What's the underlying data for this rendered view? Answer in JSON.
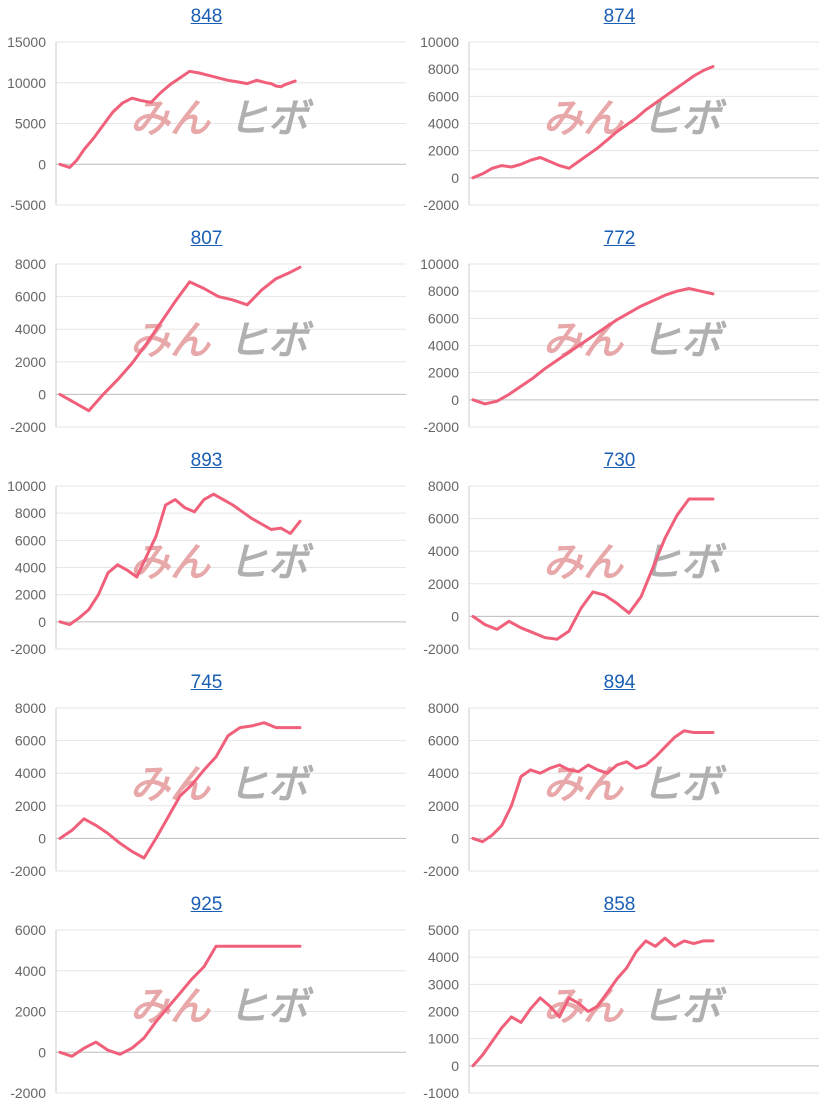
{
  "watermark": {
    "left_text": "みん",
    "right_text": "ヒボ",
    "left_color": "#e8a8aa",
    "right_color": "#b0b0b0"
  },
  "line_color": "#f0607a",
  "chart_data": [
    {
      "type": "line",
      "title": "848",
      "yticks": [
        15000,
        10000,
        5000,
        0,
        -5000
      ],
      "ylim": [
        -5000,
        15000
      ],
      "x": [
        0,
        4,
        7,
        10,
        14,
        18,
        22,
        26,
        30,
        34,
        38,
        42,
        46,
        50,
        54,
        58,
        62,
        66,
        70,
        74,
        78,
        82,
        86,
        88,
        90,
        92,
        94,
        98
      ],
      "y": [
        0,
        -400,
        500,
        1800,
        3200,
        4800,
        6400,
        7500,
        8100,
        7800,
        7600,
        8800,
        9800,
        10600,
        11400,
        11200,
        10900,
        10600,
        10300,
        10100,
        9900,
        10300,
        10000,
        9900,
        9600,
        9500,
        9800,
        10200
      ]
    },
    {
      "type": "line",
      "title": "874",
      "yticks": [
        10000,
        8000,
        6000,
        4000,
        2000,
        0,
        -2000
      ],
      "ylim": [
        -2000,
        10000
      ],
      "x": [
        0,
        4,
        8,
        12,
        16,
        20,
        24,
        28,
        32,
        36,
        40,
        44,
        48,
        52,
        56,
        60,
        64,
        68,
        72,
        76,
        80,
        84,
        88,
        92,
        96,
        100
      ],
      "y": [
        0,
        300,
        700,
        900,
        800,
        1000,
        1300,
        1500,
        1200,
        900,
        700,
        1200,
        1700,
        2200,
        2800,
        3400,
        3900,
        4400,
        5000,
        5500,
        6000,
        6500,
        7000,
        7500,
        7900,
        8200
      ]
    },
    {
      "type": "line",
      "title": "807",
      "yticks": [
        8000,
        6000,
        4000,
        2000,
        0,
        -2000
      ],
      "ylim": [
        -2000,
        8000
      ],
      "x": [
        0,
        6,
        12,
        18,
        24,
        30,
        36,
        42,
        48,
        54,
        60,
        66,
        72,
        78,
        84,
        90,
        96,
        100
      ],
      "y": [
        0,
        -500,
        -1000,
        0,
        900,
        1900,
        3100,
        4400,
        5700,
        6900,
        6500,
        6000,
        5800,
        5500,
        6400,
        7100,
        7500,
        7800
      ]
    },
    {
      "type": "line",
      "title": "772",
      "yticks": [
        10000,
        8000,
        6000,
        4000,
        2000,
        0,
        -2000
      ],
      "ylim": [
        -2000,
        10000
      ],
      "x": [
        0,
        5,
        10,
        15,
        20,
        25,
        30,
        35,
        40,
        45,
        50,
        55,
        60,
        65,
        70,
        75,
        80,
        85,
        90,
        95,
        100
      ],
      "y": [
        0,
        -300,
        -100,
        400,
        1000,
        1600,
        2300,
        2900,
        3500,
        4100,
        4700,
        5300,
        5900,
        6400,
        6900,
        7300,
        7700,
        8000,
        8200,
        8000,
        7800
      ]
    },
    {
      "type": "line",
      "title": "893",
      "yticks": [
        10000,
        8000,
        6000,
        4000,
        2000,
        0,
        -2000
      ],
      "ylim": [
        -2000,
        10000
      ],
      "x": [
        0,
        4,
        8,
        12,
        16,
        20,
        24,
        28,
        32,
        36,
        40,
        44,
        48,
        52,
        56,
        60,
        64,
        68,
        72,
        76,
        80,
        84,
        88,
        92,
        96,
        100
      ],
      "y": [
        0,
        -200,
        300,
        900,
        2000,
        3600,
        4200,
        3800,
        3300,
        4800,
        6300,
        8600,
        9000,
        8400,
        8100,
        9000,
        9400,
        9000,
        8600,
        8100,
        7600,
        7200,
        6800,
        6900,
        6500,
        7400
      ]
    },
    {
      "type": "line",
      "title": "730",
      "yticks": [
        8000,
        6000,
        4000,
        2000,
        0,
        -2000
      ],
      "ylim": [
        -2000,
        8000
      ],
      "x": [
        0,
        5,
        10,
        15,
        20,
        25,
        30,
        35,
        40,
        45,
        50,
        55,
        60,
        65,
        70,
        75,
        80,
        85,
        90,
        95,
        100
      ],
      "y": [
        0,
        -500,
        -800,
        -300,
        -700,
        -1000,
        -1300,
        -1400,
        -900,
        500,
        1500,
        1300,
        800,
        200,
        1200,
        3000,
        4800,
        6200,
        7200,
        7200,
        7200
      ]
    },
    {
      "type": "line",
      "title": "745",
      "yticks": [
        8000,
        6000,
        4000,
        2000,
        0,
        -2000
      ],
      "ylim": [
        -2000,
        8000
      ],
      "x": [
        0,
        5,
        10,
        15,
        20,
        25,
        30,
        35,
        40,
        45,
        50,
        55,
        60,
        65,
        70,
        75,
        80,
        85,
        90,
        95,
        100
      ],
      "y": [
        0,
        500,
        1200,
        800,
        300,
        -300,
        -800,
        -1200,
        0,
        1300,
        2600,
        3300,
        4200,
        5000,
        6300,
        6800,
        6900,
        7100,
        6800,
        6800,
        6800
      ]
    },
    {
      "type": "line",
      "title": "894",
      "yticks": [
        8000,
        6000,
        4000,
        2000,
        0,
        -2000
      ],
      "ylim": [
        -2000,
        8000
      ],
      "x": [
        0,
        4,
        8,
        12,
        16,
        20,
        24,
        28,
        32,
        36,
        40,
        44,
        48,
        52,
        56,
        60,
        64,
        68,
        72,
        76,
        80,
        84,
        88,
        92,
        96,
        100
      ],
      "y": [
        0,
        -200,
        200,
        800,
        2000,
        3800,
        4200,
        4000,
        4300,
        4500,
        4200,
        4100,
        4500,
        4200,
        4000,
        4500,
        4700,
        4300,
        4500,
        5000,
        5600,
        6200,
        6600,
        6500,
        6500,
        6500
      ]
    },
    {
      "type": "line",
      "title": "925",
      "yticks": [
        6000,
        4000,
        2000,
        0,
        -2000
      ],
      "ylim": [
        -2000,
        6000
      ],
      "x": [
        0,
        5,
        10,
        15,
        20,
        25,
        30,
        35,
        40,
        45,
        50,
        55,
        60,
        65,
        70,
        75,
        80,
        85,
        90,
        95,
        100
      ],
      "y": [
        0,
        -200,
        200,
        500,
        100,
        -100,
        200,
        700,
        1500,
        2200,
        2900,
        3600,
        4200,
        5200,
        5200,
        5200,
        5200,
        5200,
        5200,
        5200,
        5200
      ]
    },
    {
      "type": "line",
      "title": "858",
      "yticks": [
        5000,
        4000,
        3000,
        2000,
        1000,
        0,
        -1000
      ],
      "ylim": [
        -1000,
        5000
      ],
      "x": [
        0,
        4,
        8,
        12,
        16,
        20,
        24,
        28,
        32,
        36,
        40,
        44,
        48,
        52,
        56,
        60,
        64,
        68,
        72,
        76,
        80,
        84,
        88,
        92,
        96,
        100
      ],
      "y": [
        0,
        400,
        900,
        1400,
        1800,
        1600,
        2100,
        2500,
        2200,
        1800,
        2500,
        2300,
        2000,
        2200,
        2700,
        3200,
        3600,
        4200,
        4600,
        4400,
        4700,
        4400,
        4600,
        4500,
        4600,
        4600
      ]
    }
  ]
}
